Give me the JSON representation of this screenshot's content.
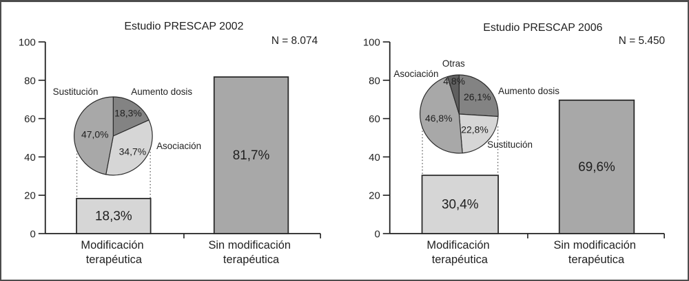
{
  "colors": {
    "background": "#ffffff",
    "frame": "#4d4d4d",
    "text": "#1f1f1f",
    "axis": "#1f1f1f",
    "bar_light": "#d6d6d6",
    "bar_medium": "#a8a8a8",
    "pie_dark": "#838383",
    "pie_darkest": "#5f5f5f"
  },
  "chart_data": [
    {
      "type": "bar",
      "title": "Estudio PRESCAP 2002",
      "n_label": "N = 8.074",
      "ylim": [
        0,
        100
      ],
      "yticks": [
        0,
        20,
        40,
        60,
        80,
        100
      ],
      "grid": false,
      "legend": "none",
      "categories": [
        [
          "Modificación",
          "terapéutica"
        ],
        [
          "Sin modificación",
          "terapéutica"
        ]
      ],
      "values": [
        18.3,
        81.7
      ],
      "value_labels": [
        "18,3%",
        "81,7%"
      ],
      "bar_colors": [
        "#d6d6d6",
        "#a8a8a8"
      ],
      "inset_pie": {
        "type": "pie",
        "linked_category": "Modificación terapéutica",
        "slices": [
          {
            "label": "Aumento dosis",
            "value": 18.3,
            "value_label": "18,3%",
            "color": "#838383"
          },
          {
            "label": "Asociación",
            "value": 34.7,
            "value_label": "34,7%",
            "color": "#d6d6d6"
          },
          {
            "label": "Sustitución",
            "value": 47.0,
            "value_label": "47,0%",
            "color": "#a8a8a8"
          }
        ]
      }
    },
    {
      "type": "bar",
      "title": "Estudio PRESCAP 2006",
      "n_label": "N = 5.450",
      "ylim": [
        0,
        100
      ],
      "yticks": [
        0,
        20,
        40,
        60,
        80,
        100
      ],
      "grid": false,
      "legend": "none",
      "categories": [
        [
          "Modificación",
          "terapéutica"
        ],
        [
          "Sin modificación",
          "terapéutica"
        ]
      ],
      "values": [
        30.4,
        69.6
      ],
      "value_labels": [
        "30,4%",
        "69,6%"
      ],
      "bar_colors": [
        "#d6d6d6",
        "#a8a8a8"
      ],
      "inset_pie": {
        "type": "pie",
        "linked_category": "Modificación terapéutica",
        "slices": [
          {
            "label": "Aumento dosis",
            "value": 26.1,
            "value_label": "26,1%",
            "color": "#838383"
          },
          {
            "label": "Sustitución",
            "value": 22.8,
            "value_label": "22,8%",
            "color": "#d6d6d6"
          },
          {
            "label": "Asociación",
            "value": 46.8,
            "value_label": "46,8%",
            "color": "#a8a8a8"
          },
          {
            "label": "Otras",
            "value": 4.8,
            "value_label": "4,8%",
            "color": "#5f5f5f"
          }
        ]
      }
    }
  ]
}
